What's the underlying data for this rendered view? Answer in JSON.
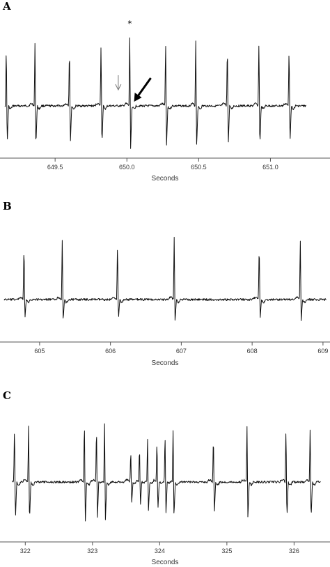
{
  "chart_data": [
    {
      "type": "line",
      "panel_label": "A",
      "xlabel": "Seconds",
      "xlim": [
        649.15,
        651.25
      ],
      "x_ticks": [
        "649.5",
        "650.0",
        "650.5",
        "651.0"
      ],
      "baseline": 0,
      "series": [
        {
          "values": [
            {
              "t": 649.16,
              "amp": 9.8
            },
            {
              "t": 649.36,
              "amp": 10.4
            },
            {
              "t": 649.6,
              "amp": 9.6
            },
            {
              "t": 649.82,
              "amp": 10.1
            },
            {
              "t": 650.02,
              "amp": 10.6
            },
            {
              "t": 650.27,
              "amp": 10.0
            },
            {
              "t": 650.48,
              "amp": 10.2
            },
            {
              "t": 650.7,
              "amp": 9.9
            },
            {
              "t": 650.92,
              "amp": 10.5
            },
            {
              "t": 651.13,
              "amp": 9.7
            }
          ]
        }
      ],
      "annotations": [
        {
          "type": "star",
          "text": "*",
          "t": 650.02
        },
        {
          "type": "thin-arrow",
          "t": 649.94
        },
        {
          "type": "thick-arrow",
          "t": 650.05
        }
      ]
    },
    {
      "type": "line",
      "panel_label": "B",
      "xlabel": "Seconds",
      "xlim": [
        604.5,
        609.05
      ],
      "x_ticks": [
        "605",
        "606",
        "607",
        "608",
        "609"
      ],
      "baseline": 0,
      "series": [
        {
          "values": [
            {
              "t": 604.78,
              "amp": 8.4
            },
            {
              "t": 605.32,
              "amp": 8.8
            },
            {
              "t": 606.1,
              "amp": 8.6
            },
            {
              "t": 606.9,
              "amp": 9.1
            },
            {
              "t": 608.1,
              "amp": 8.5
            },
            {
              "t": 608.68,
              "amp": 8.9
            }
          ]
        }
      ]
    },
    {
      "type": "line",
      "panel_label": "C",
      "xlabel": "Seconds",
      "xlim": [
        321.8,
        326.4
      ],
      "x_ticks": [
        "322",
        "323",
        "324",
        "325",
        "326"
      ],
      "baseline": 0,
      "series": [
        {
          "values": [
            {
              "t": 321.84,
              "amp": 8.0
            },
            {
              "t": 322.05,
              "amp": 8.2
            },
            {
              "t": 322.88,
              "amp": 8.5
            },
            {
              "t": 323.06,
              "amp": 7.8
            },
            {
              "t": 323.18,
              "amp": 7.6
            },
            {
              "t": 323.57,
              "amp": 4.4
            },
            {
              "t": 323.7,
              "amp": 5.0
            },
            {
              "t": 323.82,
              "amp": 5.8
            },
            {
              "t": 323.96,
              "amp": 6.0
            },
            {
              "t": 324.08,
              "amp": 6.6
            },
            {
              "t": 324.2,
              "amp": 7.0
            },
            {
              "t": 324.8,
              "amp": 6.6
            },
            {
              "t": 325.3,
              "amp": 7.4
            },
            {
              "t": 325.88,
              "amp": 7.6
            },
            {
              "t": 326.24,
              "amp": 7.8
            }
          ]
        }
      ]
    }
  ]
}
